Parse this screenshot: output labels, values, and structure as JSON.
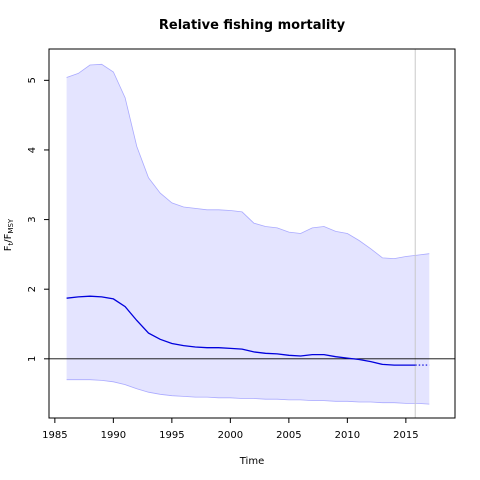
{
  "chart_data": {
    "type": "line",
    "title": "Relative fishing mortality",
    "xlabel": "Time",
    "ylabel": {
      "main": "F",
      "sub1": "t",
      "sep": "/F",
      "sub2": "MSY"
    },
    "xlim": [
      1984.5,
      2019.2
    ],
    "ylim": [
      0.15,
      5.45
    ],
    "xticks": [
      1985,
      1990,
      1995,
      2000,
      2005,
      2010,
      2015
    ],
    "yticks": [
      1,
      2,
      3,
      4,
      5
    ],
    "grid": false,
    "reference_line_y": 1,
    "current_year_line_x": 2015.8,
    "colors": {
      "estimate": "#0000dd",
      "band_fill": "#e4e4ff",
      "band_edge": "#aaaaff",
      "reference": "#000000",
      "year_line": "#c8c8c8"
    },
    "series": [
      {
        "x": [
          1986,
          1987,
          1988,
          1989,
          1990,
          1991,
          1992,
          1993,
          1994,
          1995,
          1996,
          1997,
          1998,
          1999,
          2000,
          2001,
          2002,
          2003,
          2004,
          2005,
          2006,
          2007,
          2008,
          2009,
          2010,
          2011,
          2012,
          2013,
          2014,
          2015,
          2015.8
        ],
        "values": [
          1.87,
          1.89,
          1.9,
          1.89,
          1.86,
          1.75,
          1.55,
          1.37,
          1.28,
          1.22,
          1.19,
          1.17,
          1.16,
          1.16,
          1.15,
          1.14,
          1.1,
          1.08,
          1.07,
          1.05,
          1.04,
          1.06,
          1.06,
          1.03,
          1.01,
          0.99,
          0.96,
          0.92,
          0.91,
          0.91,
          0.91
        ]
      }
    ],
    "forecast": {
      "x": [
        2015.8,
        2017
      ],
      "values": [
        0.91,
        0.91
      ]
    },
    "confidence_band": {
      "x": [
        1986,
        1987,
        1988,
        1989,
        1990,
        1991,
        1992,
        1993,
        1994,
        1995,
        1996,
        1997,
        1998,
        1999,
        2000,
        2001,
        2002,
        2003,
        2004,
        2005,
        2006,
        2007,
        2008,
        2009,
        2010,
        2011,
        2012,
        2013,
        2014,
        2015,
        2016,
        2017
      ],
      "upper": [
        5.04,
        5.1,
        5.22,
        5.23,
        5.12,
        4.75,
        4.05,
        3.6,
        3.38,
        3.24,
        3.18,
        3.16,
        3.14,
        3.14,
        3.13,
        3.11,
        2.95,
        2.9,
        2.88,
        2.82,
        2.8,
        2.88,
        2.9,
        2.83,
        2.8,
        2.7,
        2.58,
        2.45,
        2.44,
        2.47,
        2.49,
        2.51
      ],
      "lower": [
        0.7,
        0.7,
        0.7,
        0.69,
        0.67,
        0.63,
        0.57,
        0.52,
        0.49,
        0.47,
        0.46,
        0.45,
        0.45,
        0.44,
        0.44,
        0.43,
        0.43,
        0.42,
        0.42,
        0.41,
        0.41,
        0.4,
        0.4,
        0.39,
        0.39,
        0.38,
        0.38,
        0.37,
        0.37,
        0.36,
        0.36,
        0.35
      ]
    }
  }
}
